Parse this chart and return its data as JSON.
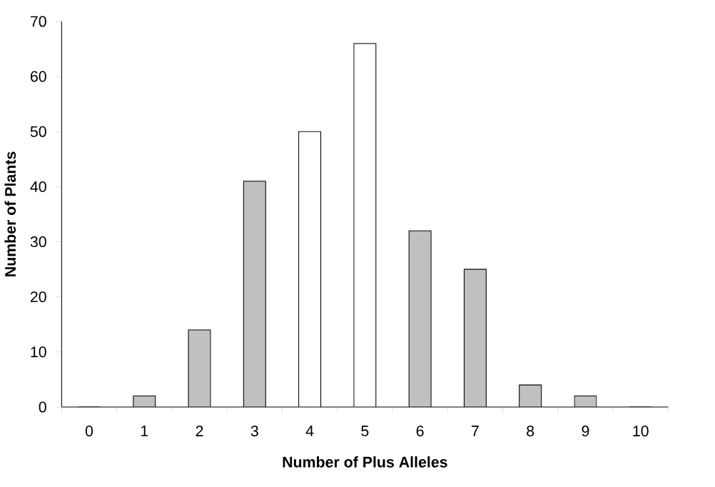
{
  "chart_data": {
    "type": "bar",
    "xlabel": "Number of Plus Alleles",
    "ylabel": "Number of Plants",
    "categories": [
      "0",
      "1",
      "2",
      "3",
      "4",
      "5",
      "6",
      "7",
      "8",
      "9",
      "10"
    ],
    "values": [
      0,
      2,
      14,
      41,
      50,
      66,
      32,
      25,
      4,
      2,
      0
    ],
    "colors": [
      "#c0c0c0",
      "#c0c0c0",
      "#c0c0c0",
      "#c0c0c0",
      "#ffffff",
      "#ffffff",
      "#c0c0c0",
      "#c0c0c0",
      "#c0c0c0",
      "#c0c0c0",
      "#c0c0c0"
    ],
    "ylim": [
      0,
      70
    ],
    "yticks": [
      0,
      10,
      20,
      30,
      40,
      50,
      60,
      70
    ],
    "grid": false
  }
}
